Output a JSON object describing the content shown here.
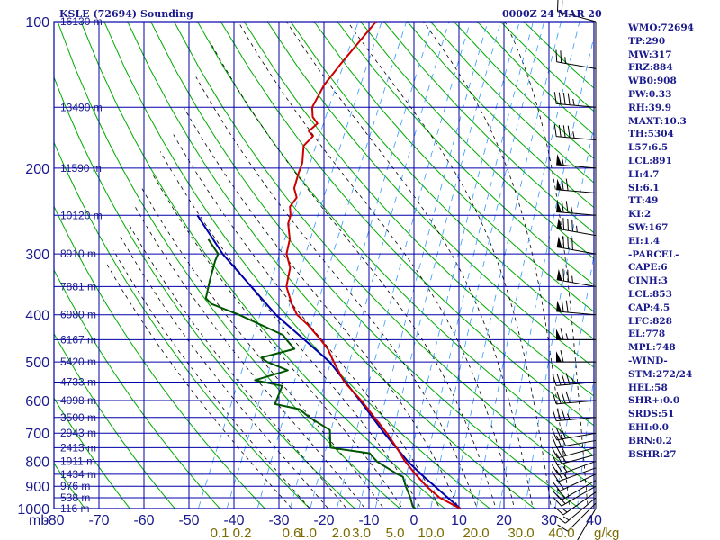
{
  "header": {
    "station": "KSLE (72694) Sounding",
    "datetime": "0000Z 24 MAR 20"
  },
  "indices": [
    "WMO:72694",
    "TP:290",
    "MW:317",
    "FRZ:884",
    "WB0:908",
    "PW:0.33",
    "RH:39.9",
    "MAXT:10.3",
    "TH:5304",
    "L57:6.5",
    "LCL:891",
    "LI:4.7",
    "SI:6.1",
    "TT:49",
    "KI:2",
    "SW:167",
    "EI:1.4",
    "-PARCEL-",
    "CAPE:6",
    "CINH:3",
    "LCL:853",
    "CAP:4.5",
    "LFC:828",
    "EL:778",
    "MPL:748",
    "-WIND-",
    "STM:272/24",
    "HEL:58",
    "SHR+:0.0",
    "SRDS:51",
    "EHI:0.0",
    "BRN:0.2",
    "BSHR:27"
  ],
  "colors": {
    "grid": "#0000aa",
    "dry_adiabat": "#00aa00",
    "moist_adiabat": "#000000",
    "mixing_ratio": "#3399ff",
    "temperature": "#cc0000",
    "dewpoint": "#005500",
    "parcel": "#0000aa",
    "axis_text": "#1a1a8c",
    "mixing_label": "#7a6a00",
    "wind_barb": "#000000"
  },
  "chart_data": {
    "type": "skew-t log-p sounding",
    "pressure_ticks": [
      100,
      200,
      300,
      400,
      500,
      600,
      700,
      800,
      900,
      1000
    ],
    "pressure_unit_label": "mb",
    "temperature_ticks": [
      "-80",
      "-70",
      "-60",
      "-50",
      "-40",
      "-30",
      "-20",
      "-10",
      "0",
      "10",
      "20",
      "30",
      "40"
    ],
    "xlim": [
      -80,
      40
    ],
    "ylim": [
      100,
      1000
    ],
    "yscale": "log",
    "height_labels": [
      {
        "p": 100,
        "text": "16130 m"
      },
      {
        "p": 150,
        "text": "13490 m"
      },
      {
        "p": 200,
        "text": "11590 m"
      },
      {
        "p": 250,
        "text": "10120 m"
      },
      {
        "p": 300,
        "text": "8910 m"
      },
      {
        "p": 350,
        "text": "7881 m"
      },
      {
        "p": 400,
        "text": "6980 m"
      },
      {
        "p": 450,
        "text": "6167 m"
      },
      {
        "p": 500,
        "text": "5420 m"
      },
      {
        "p": 550,
        "text": "4733 m"
      },
      {
        "p": 600,
        "text": "4098 m"
      },
      {
        "p": 650,
        "text": "3500 m"
      },
      {
        "p": 700,
        "text": "2943 m"
      },
      {
        "p": 750,
        "text": "2413 m"
      },
      {
        "p": 800,
        "text": "1911 m"
      },
      {
        "p": 850,
        "text": "1434 m"
      },
      {
        "p": 900,
        "text": "976 m"
      },
      {
        "p": 950,
        "text": "538 m"
      },
      {
        "p": 1000,
        "text": "116 m"
      }
    ],
    "mixing_ratio_labels": [
      {
        "t": -42,
        "text": "0.1"
      },
      {
        "t": -37,
        "text": "0.2"
      },
      {
        "t": -26,
        "text": "0.6"
      },
      {
        "t": -22.5,
        "text": "1.0"
      },
      {
        "t": -15,
        "text": "2.0"
      },
      {
        "t": -10.5,
        "text": "3.0"
      },
      {
        "t": -3,
        "text": "5.0"
      },
      {
        "t": 5,
        "text": "10.0"
      },
      {
        "t": 15,
        "text": "20.0"
      },
      {
        "t": 25,
        "text": "30.0"
      },
      {
        "t": 34,
        "text": "40.0"
      }
    ],
    "mixing_ratio_unit": "g/kg",
    "temperature": [
      {
        "p": 1000,
        "t": 10.3
      },
      {
        "p": 950,
        "t": 4.5
      },
      {
        "p": 900,
        "t": 0.3
      },
      {
        "p": 850,
        "t": -3.5
      },
      {
        "p": 800,
        "t": -7.2
      },
      {
        "p": 750,
        "t": -10.6
      },
      {
        "p": 700,
        "t": -14.4
      },
      {
        "p": 650,
        "t": -18.9
      },
      {
        "p": 600,
        "t": -23.7
      },
      {
        "p": 550,
        "t": -29.5
      },
      {
        "p": 500,
        "t": -34.1
      },
      {
        "p": 470,
        "t": -36.9
      },
      {
        "p": 450,
        "t": -39.5
      },
      {
        "p": 420,
        "t": -43.9
      },
      {
        "p": 400,
        "t": -47.5
      },
      {
        "p": 380,
        "t": -49.9
      },
      {
        "p": 350,
        "t": -53.0
      },
      {
        "p": 320,
        "t": -54.3
      },
      {
        "p": 300,
        "t": -56.6
      },
      {
        "p": 280,
        "t": -57.5
      },
      {
        "p": 260,
        "t": -59.6
      },
      {
        "p": 250,
        "t": -60.0
      },
      {
        "p": 240,
        "t": -61.1
      },
      {
        "p": 230,
        "t": -60.6
      },
      {
        "p": 220,
        "t": -62.2
      },
      {
        "p": 205,
        "t": -62.9
      },
      {
        "p": 195,
        "t": -63.2
      },
      {
        "p": 180,
        "t": -64.8
      },
      {
        "p": 172,
        "t": -63.8
      },
      {
        "p": 168,
        "t": -65.3
      },
      {
        "p": 162,
        "t": -64.2
      },
      {
        "p": 157,
        "t": -66.0
      },
      {
        "p": 150,
        "t": -67.2
      },
      {
        "p": 135,
        "t": -67.0
      },
      {
        "p": 120,
        "t": -65.4
      },
      {
        "p": 100,
        "t": -62.5
      }
    ],
    "dewpoint": [
      {
        "p": 1000,
        "t": 0.3
      },
      {
        "p": 990,
        "t": -0.5
      },
      {
        "p": 950,
        "t": -2.0
      },
      {
        "p": 900,
        "t": -4.3
      },
      {
        "p": 860,
        "t": -6.0
      },
      {
        "p": 850,
        "t": -7.5
      },
      {
        "p": 800,
        "t": -13.5
      },
      {
        "p": 770,
        "t": -16.0
      },
      {
        "p": 750,
        "t": -25.3
      },
      {
        "p": 690,
        "t": -27.4
      },
      {
        "p": 650,
        "t": -33.3
      },
      {
        "p": 625,
        "t": -36.5
      },
      {
        "p": 610,
        "t": -42.5
      },
      {
        "p": 560,
        "t": -42.9
      },
      {
        "p": 545,
        "t": -49.6
      },
      {
        "p": 520,
        "t": -43.4
      },
      {
        "p": 500,
        "t": -48.9
      },
      {
        "p": 490,
        "t": -50.7
      },
      {
        "p": 470,
        "t": -44.3
      },
      {
        "p": 450,
        "t": -47.1
      },
      {
        "p": 440,
        "t": -48.4
      },
      {
        "p": 400,
        "t": -60.4
      },
      {
        "p": 380,
        "t": -67.7
      },
      {
        "p": 370,
        "t": -69.6
      },
      {
        "p": 340,
        "t": -70.7
      },
      {
        "p": 310,
        "t": -71.7
      },
      {
        "p": 300,
        "t": -71.8
      },
      {
        "p": 280,
        "t": -75.6
      }
    ],
    "parcel": [
      {
        "p": 1000,
        "t": 10.3
      },
      {
        "p": 853,
        "t": -2.0
      },
      {
        "p": 800,
        "t": -6.6
      },
      {
        "p": 700,
        "t": -15.0
      },
      {
        "p": 600,
        "t": -24.0
      },
      {
        "p": 500,
        "t": -35.0
      },
      {
        "p": 400,
        "t": -52.2
      },
      {
        "p": 300,
        "t": -70.8
      },
      {
        "p": 250,
        "t": -80.7
      }
    ],
    "wind_barbs": [
      {
        "p": 1000,
        "dir": 210,
        "spd": 5
      },
      {
        "p": 975,
        "dir": 225,
        "spd": 10
      },
      {
        "p": 950,
        "dir": 230,
        "spd": 15
      },
      {
        "p": 925,
        "dir": 235,
        "spd": 15
      },
      {
        "p": 900,
        "dir": 240,
        "spd": 20
      },
      {
        "p": 875,
        "dir": 240,
        "spd": 20
      },
      {
        "p": 850,
        "dir": 245,
        "spd": 20
      },
      {
        "p": 825,
        "dir": 250,
        "spd": 25
      },
      {
        "p": 800,
        "dir": 250,
        "spd": 25
      },
      {
        "p": 775,
        "dir": 255,
        "spd": 25
      },
      {
        "p": 750,
        "dir": 255,
        "spd": 30
      },
      {
        "p": 725,
        "dir": 260,
        "spd": 30
      },
      {
        "p": 700,
        "dir": 260,
        "spd": 30
      },
      {
        "p": 650,
        "dir": 265,
        "spd": 35
      },
      {
        "p": 600,
        "dir": 265,
        "spd": 40
      },
      {
        "p": 550,
        "dir": 265,
        "spd": 45
      },
      {
        "p": 500,
        "dir": 270,
        "spd": 60
      },
      {
        "p": 450,
        "dir": 270,
        "spd": 65
      },
      {
        "p": 400,
        "dir": 275,
        "spd": 70
      },
      {
        "p": 350,
        "dir": 280,
        "spd": 75
      },
      {
        "p": 300,
        "dir": 280,
        "spd": 80
      },
      {
        "p": 275,
        "dir": 280,
        "spd": 85
      },
      {
        "p": 250,
        "dir": 275,
        "spd": 75
      },
      {
        "p": 225,
        "dir": 275,
        "spd": 70
      },
      {
        "p": 200,
        "dir": 275,
        "spd": 55
      },
      {
        "p": 175,
        "dir": 275,
        "spd": 45
      },
      {
        "p": 150,
        "dir": 275,
        "spd": 45
      },
      {
        "p": 125,
        "dir": 280,
        "spd": 25
      },
      {
        "p": 100,
        "dir": 285,
        "spd": 20
      }
    ]
  }
}
